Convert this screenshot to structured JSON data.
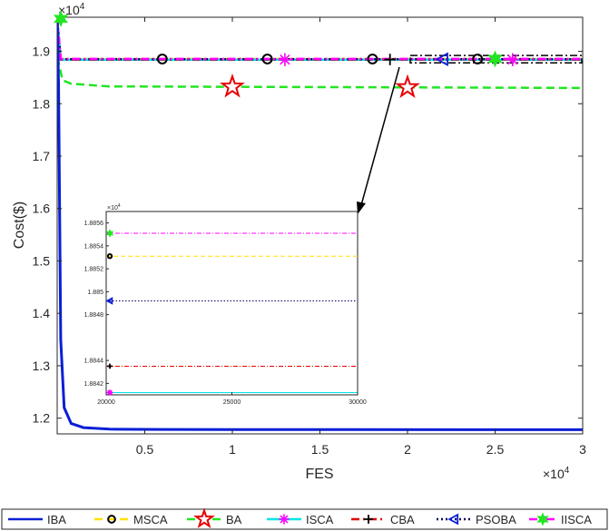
{
  "chart_data": {
    "type": "line",
    "xlabel": "FES",
    "ylabel": "Cost($)",
    "x_exponent_label": "×10",
    "x_exponent_power": "4",
    "y_exponent_label": "×10",
    "y_exponent_power": "4",
    "xlim": [
      0,
      30000
    ],
    "ylim": [
      11700,
      19650
    ],
    "x_ticks": [
      5000,
      10000,
      15000,
      20000,
      25000,
      30000
    ],
    "x_tick_labels": [
      "0.5",
      "1",
      "1.5",
      "2",
      "2.5",
      "3"
    ],
    "y_ticks": [
      12000,
      13000,
      14000,
      15000,
      16000,
      17000,
      18000,
      19000
    ],
    "y_tick_labels": [
      "1.2",
      "1.3",
      "1.4",
      "1.5",
      "1.6",
      "1.7",
      "1.8",
      "1.9"
    ],
    "grid": false,
    "legend_position": "bottom",
    "series": [
      {
        "name": "IBA",
        "color": "#0a1fd6",
        "style": "solid",
        "marker": "none",
        "x": [
          0,
          80,
          200,
          400,
          800,
          1500,
          3000,
          6000,
          10000,
          30000
        ],
        "y": [
          19620,
          18400,
          13500,
          12200,
          11900,
          11820,
          11790,
          11785,
          11783,
          11780
        ]
      },
      {
        "name": "MSCA",
        "color": "#ffe000",
        "style": "dashed",
        "marker": "circle",
        "x": [
          0,
          200,
          30000
        ],
        "y": [
          19620,
          18853,
          18853
        ]
      },
      {
        "name": "BA",
        "color": "#22e622",
        "style": "dashed",
        "marker": "star",
        "x": [
          0,
          80,
          300,
          800,
          3000,
          30000
        ],
        "y": [
          19620,
          18800,
          18450,
          18380,
          18330,
          18300
        ]
      },
      {
        "name": "ISCA",
        "color": "#00e6e6",
        "style": "solid",
        "marker": "asterisk",
        "x": [
          0,
          200,
          30000
        ],
        "y": [
          19620,
          18841,
          18841
        ]
      },
      {
        "name": "CBA",
        "color": "#e60000",
        "style": "dashdot",
        "marker": "plus",
        "x": [
          0,
          200,
          30000
        ],
        "y": [
          19620,
          18844,
          18844
        ]
      },
      {
        "name": "PSOBA",
        "color": "#000066",
        "style": "dotted",
        "marker": "triangle-left",
        "x": [
          0,
          200,
          30000
        ],
        "y": [
          19620,
          18849,
          18849
        ]
      },
      {
        "name": "IISCA",
        "color": "#ff00ff",
        "style": "dashdot",
        "marker": "hexagram",
        "x": [
          0,
          200,
          30000
        ],
        "y": [
          19620,
          18855,
          18855
        ]
      }
    ],
    "inset": {
      "xlim": [
        20000,
        30000
      ],
      "ylim": [
        18841,
        18857
      ],
      "x_ticks": [
        20000,
        25000,
        30000
      ],
      "x_tick_labels": [
        "20000",
        "25000",
        "30000"
      ],
      "y_ticks": [
        18842,
        18844,
        18848,
        18850,
        18852,
        18854,
        18856
      ],
      "y_tick_labels": [
        "1.8842",
        "1.8844",
        "1.8848",
        "1.885",
        "1.8852",
        "1.8854",
        "1.8856"
      ],
      "y_exponent_label": "×10",
      "y_exponent_power": "4",
      "lines": [
        {
          "name": "IISCA",
          "y": 18855.1,
          "color": "#ff00ff",
          "style": "dashdot",
          "marker": "hexagram",
          "marker_color": "#22e622"
        },
        {
          "name": "MSCA",
          "y": 18853.1,
          "color": "#ffe000",
          "style": "dashed",
          "marker": "circle",
          "marker_color": "#000000"
        },
        {
          "name": "PSOBA",
          "y": 18849.2,
          "color": "#000066",
          "style": "dotted",
          "marker": "triangle-left",
          "marker_color": "#0a1fd6"
        },
        {
          "name": "CBA",
          "y": 18843.5,
          "color": "#e60000",
          "style": "dashdot",
          "marker": "plus",
          "marker_color": "#000000"
        },
        {
          "name": "ISCA",
          "y": 18841.2,
          "color": "#00e6e6",
          "style": "solid",
          "marker": "asterisk",
          "marker_color": "#ff00ff"
        }
      ]
    },
    "zoom_box": {
      "x": [
        20000,
        30000
      ],
      "y": [
        18780,
        18920
      ]
    }
  }
}
